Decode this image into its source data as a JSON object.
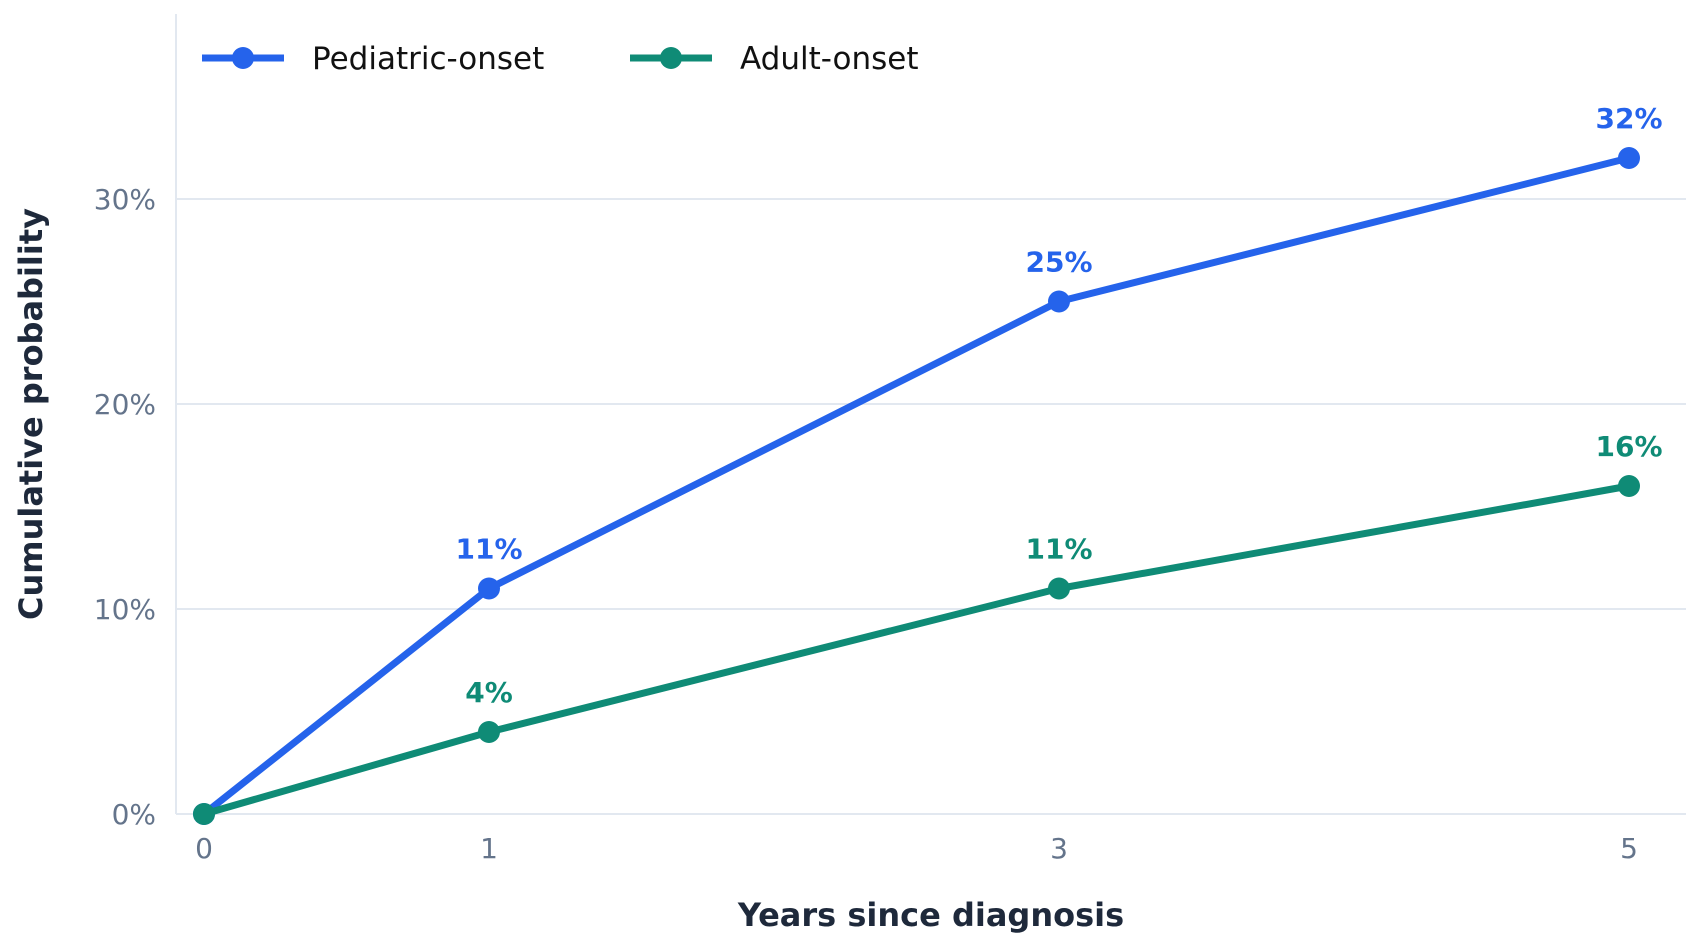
{
  "chart_data": {
    "type": "line",
    "title": "",
    "xlabel": "Years since diagnosis",
    "ylabel": "Cumulative probability",
    "x": [
      0,
      1,
      3,
      5
    ],
    "x_tick_labels": [
      "0",
      "1",
      "3",
      "5"
    ],
    "xlim": [
      -0.1,
      5.2
    ],
    "ylim": [
      0,
      39
    ],
    "y_ticks": [
      0,
      10,
      20,
      30
    ],
    "y_tick_labels": [
      "0%",
      "10%",
      "20%",
      "30%"
    ],
    "grid": "horizontal",
    "legend": "top-left",
    "series": [
      {
        "name": "Pediatric-onset",
        "color": "#2563eb",
        "values": [
          0,
          11,
          25,
          32
        ],
        "labels": [
          "",
          "11%",
          "25%",
          "32%"
        ]
      },
      {
        "name": "Adult-onset",
        "color": "#0f8b76",
        "values": [
          0,
          4,
          11,
          16
        ],
        "labels": [
          "",
          "4%",
          "11%",
          "16%"
        ]
      }
    ]
  }
}
